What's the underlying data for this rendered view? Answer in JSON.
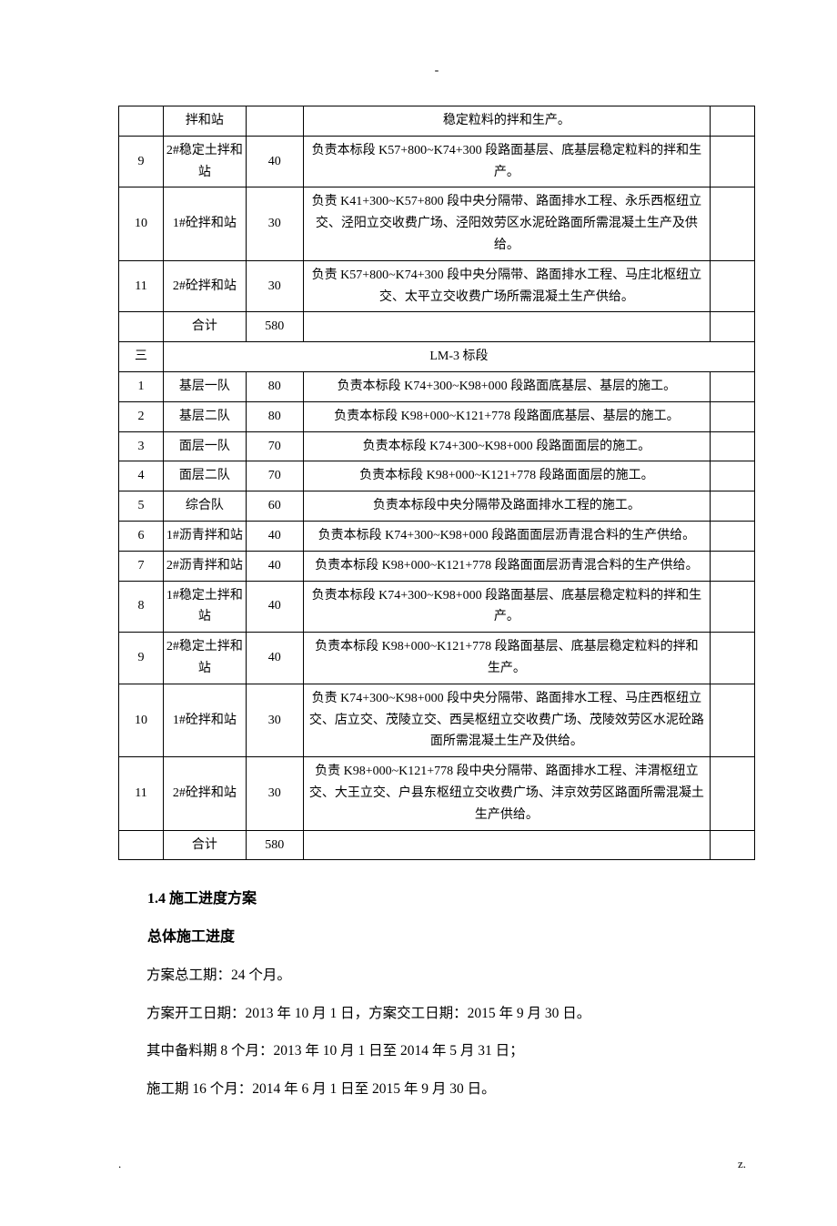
{
  "topMark": "-",
  "columns": {
    "c1_width": 7,
    "c2_width": 13,
    "c3_width": 9,
    "c4_width": 64,
    "c5_width": 7
  },
  "rows_top": [
    {
      "c1": "",
      "c2": "拌和站",
      "c3": "",
      "c4": "稳定粒料的拌和生产。",
      "c5": ""
    },
    {
      "c1": "9",
      "c2": "2#稳定土拌和站",
      "c3": "40",
      "c4": "负责本标段 K57+800~K74+300 段路面基层、底基层稳定粒料的拌和生产。",
      "c5": ""
    },
    {
      "c1": "10",
      "c2": "1#砼拌和站",
      "c3": "30",
      "c4": "负责 K41+300~K57+800 段中央分隔带、路面排水工程、永乐西枢纽立交、泾阳立交收费广场、泾阳效劳区水泥砼路面所需混凝土生产及供给。",
      "c5": ""
    },
    {
      "c1": "11",
      "c2": "2#砼拌和站",
      "c3": "30",
      "c4": "负责 K57+800~K74+300 段中央分隔带、路面排水工程、马庄北枢纽立交、太平立交收费广场所需混凝土生产供给。",
      "c5": ""
    },
    {
      "c1": "",
      "c2": "合计",
      "c3": "580",
      "c4": "",
      "c5": ""
    }
  ],
  "section_row": {
    "c1": "三",
    "label": "LM-3 标段"
  },
  "rows_bottom": [
    {
      "c1": "1",
      "c2": "基层一队",
      "c3": "80",
      "c4": "负责本标段 K74+300~K98+000 段路面底基层、基层的施工。",
      "c5": ""
    },
    {
      "c1": "2",
      "c2": "基层二队",
      "c3": "80",
      "c4": "负责本标段 K98+000~K121+778 段路面底基层、基层的施工。",
      "c5": ""
    },
    {
      "c1": "3",
      "c2": "面层一队",
      "c3": "70",
      "c4": "负责本标段 K74+300~K98+000 段路面面层的施工。",
      "c5": ""
    },
    {
      "c1": "4",
      "c2": "面层二队",
      "c3": "70",
      "c4": "负责本标段 K98+000~K121+778 段路面面层的施工。",
      "c5": ""
    },
    {
      "c1": "5",
      "c2": "综合队",
      "c3": "60",
      "c4": "负责本标段中央分隔带及路面排水工程的施工。",
      "c5": ""
    },
    {
      "c1": "6",
      "c2": "1#沥青拌和站",
      "c3": "40",
      "c4": "负责本标段 K74+300~K98+000 段路面面层沥青混合料的生产供给。",
      "c5": ""
    },
    {
      "c1": "7",
      "c2": "2#沥青拌和站",
      "c3": "40",
      "c4": "负责本标段 K98+000~K121+778 段路面面层沥青混合料的生产供给。",
      "c5": ""
    },
    {
      "c1": "8",
      "c2": "1#稳定土拌和站",
      "c3": "40",
      "c4": "负责本标段 K74+300~K98+000 段路面基层、底基层稳定粒料的拌和生产。",
      "c5": ""
    },
    {
      "c1": "9",
      "c2": "2#稳定土拌和站",
      "c3": "40",
      "c4": "负责本标段 K98+000~K121+778 段路面基层、底基层稳定粒料的拌和生产。",
      "c5": ""
    },
    {
      "c1": "10",
      "c2": "1#砼拌和站",
      "c3": "30",
      "c4": "负责 K74+300~K98+000 段中央分隔带、路面排水工程、马庄西枢纽立交、店立交、茂陵立交、西吴枢纽立交收费广场、茂陵效劳区水泥砼路面所需混凝土生产及供给。",
      "c5": ""
    },
    {
      "c1": "11",
      "c2": "2#砼拌和站",
      "c3": "30",
      "c4": "负责 K98+000~K121+778 段中央分隔带、路面排水工程、沣渭枢纽立交、大王立交、户县东枢纽立交收费广场、沣京效劳区路面所需混凝土生产供给。",
      "c5": ""
    },
    {
      "c1": "",
      "c2": "合计",
      "c3": "580",
      "c4": "",
      "c5": ""
    }
  ],
  "headings": {
    "section": "1.4 施工进度方案",
    "sub": "总体施工进度"
  },
  "paras": {
    "p1": "方案总工期：24 个月。",
    "p2": "方案开工日期：2013 年 10 月 1 日，方案交工日期：2015 年 9 月 30 日。",
    "p3": "其中备料期 8 个月：2013 年 10 月 1 日至 2014 年 5 月 31 日；",
    "p4": "施工期 16 个月：2014 年 6 月 1 日至 2015 年 9 月 30 日。"
  },
  "footer": {
    "left": ".",
    "right": "z."
  }
}
